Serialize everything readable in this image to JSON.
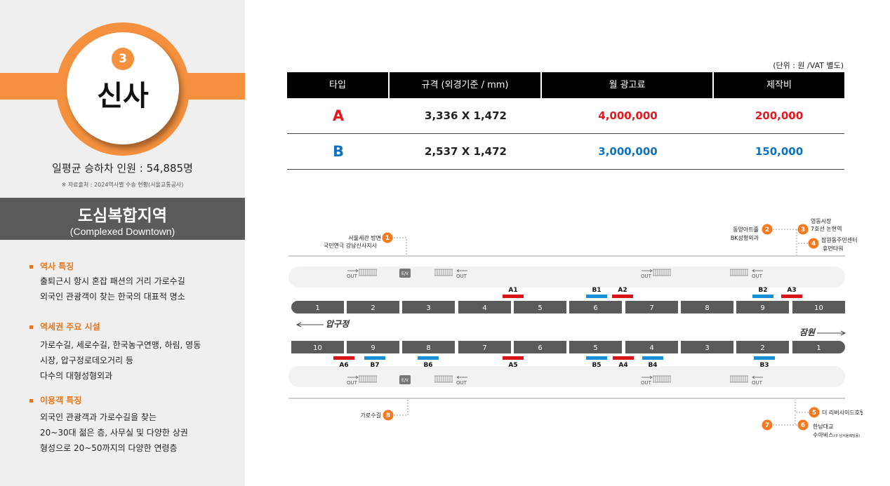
{
  "station": {
    "number": "3",
    "name": "신사",
    "ridership": "일평균 승하차 인원 : 54,885명",
    "source": "※ 자료출처 : 2024역사별 수송 현황(서울교통공사)"
  },
  "zone": {
    "title": "도심복합지역",
    "subtitle": "(Complexed Downtown)"
  },
  "sections": [
    {
      "title": "역사 특징",
      "lines": [
        "출퇴근시 항시 혼잡 패션의 거리 가로수길",
        "외국인 관광객이 찾는  한국의 대표적 명소"
      ]
    },
    {
      "title": "역세권 주요 시설",
      "lines": [
        "가로수길, 세로수길, 한국농구연맹, 하림, 영동",
        "시장, 압구정로데오거리 등",
        "다수의 대형성형외과"
      ]
    },
    {
      "title": "이용객 특징",
      "lines": [
        "외국인 관광객과 가로수길을 찾는",
        "20~30대 젊은 층, 사무실 및 다양한 상권",
        "형성으로 20~50까지의 다양한 연령층"
      ]
    }
  ],
  "table": {
    "unit_note": "(단위 : 원 /VAT 별도)",
    "headers": [
      "타입",
      "규격 (외경기준 / mm)",
      "월 광고료",
      "제작비"
    ],
    "rows": [
      {
        "type": "A",
        "spec": "3,336 X 1,472",
        "monthly": "4,000,000",
        "production": "200,000"
      },
      {
        "type": "B",
        "spec": "2,537 X 1,472",
        "monthly": "3,000,000",
        "production": "150,000"
      }
    ]
  },
  "map": {
    "top_cars": [
      "1",
      "2",
      "3",
      "4",
      "5",
      "6",
      "7",
      "8",
      "9",
      "10"
    ],
    "bottom_cars": [
      "10",
      "9",
      "8",
      "7",
      "6",
      "5",
      "4",
      "3",
      "2",
      "1"
    ],
    "direction_left": "압구정",
    "direction_right": "잠원",
    "out_label": "OUT",
    "ev_label": "E/V",
    "top_ads": [
      {
        "label": "A1",
        "kind": "A"
      },
      {
        "label": "B1",
        "kind": "B"
      },
      {
        "label": "A2",
        "kind": "A"
      },
      {
        "label": "B2",
        "kind": "B"
      },
      {
        "label": "A3",
        "kind": "A"
      }
    ],
    "bottom_ads": [
      {
        "label": "A6",
        "kind": "A"
      },
      {
        "label": "B7",
        "kind": "B"
      },
      {
        "label": "B6",
        "kind": "B"
      },
      {
        "label": "A5",
        "kind": "A"
      },
      {
        "label": "B5",
        "kind": "B"
      },
      {
        "label": "A4",
        "kind": "A"
      },
      {
        "label": "B4",
        "kind": "B"
      },
      {
        "label": "B3",
        "kind": "B"
      }
    ],
    "exits": {
      "e1": {
        "num": "1",
        "line1": "서울세관 방면",
        "line2": "국민연극 강남신사지사"
      },
      "e2": {
        "num": "2",
        "line1": "동양아트홀",
        "line2": "BK성형외과"
      },
      "e3": {
        "num": "3",
        "line1": "영동시장",
        "line2": "7호선 논현역"
      },
      "e4": {
        "num": "4",
        "line1": "잠원동주민센터",
        "line2": "휴먼타워"
      },
      "e5": {
        "num": "5",
        "line1": "더 리버사이드호텔"
      },
      "e6": {
        "num": "6",
        "line1": "한남대교",
        "line2": "수아비스",
        "line2_small": "(구 남서울웨딩홀)"
      },
      "e7": {
        "num": "7"
      },
      "e8": {
        "num": "8",
        "line1": "가로수길"
      }
    },
    "colors": {
      "accent": "#f5913e",
      "ad_a": "#d7161c",
      "ad_b": "#1a8fd6",
      "car": "#5a5a5a"
    }
  }
}
